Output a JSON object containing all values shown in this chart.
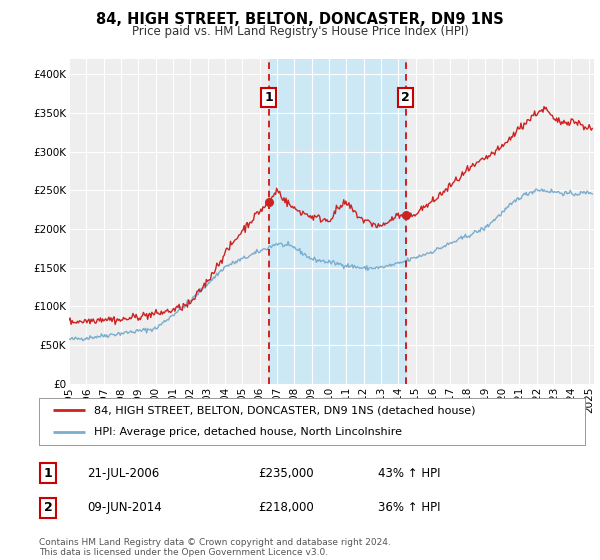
{
  "title": "84, HIGH STREET, BELTON, DONCASTER, DN9 1NS",
  "subtitle": "Price paid vs. HM Land Registry's House Price Index (HPI)",
  "footnote1": "Contains HM Land Registry data © Crown copyright and database right 2024.",
  "footnote2": "This data is licensed under the Open Government Licence v3.0.",
  "legend_line1": "84, HIGH STREET, BELTON, DONCASTER, DN9 1NS (detached house)",
  "legend_line2": "HPI: Average price, detached house, North Lincolnshire",
  "annotation1_date": "21-JUL-2006",
  "annotation1_price": "£235,000",
  "annotation1_hpi": "43% ↑ HPI",
  "annotation2_date": "09-JUN-2014",
  "annotation2_price": "£218,000",
  "annotation2_hpi": "36% ↑ HPI",
  "sale1_x": 2006.54,
  "sale1_y": 235000,
  "sale2_x": 2014.44,
  "sale2_y": 218000,
  "vline1_x": 2006.54,
  "vline2_x": 2014.44,
  "shade_start": 2006.54,
  "shade_end": 2014.44,
  "ylim_min": 0,
  "ylim_max": 420000,
  "xlim_min": 1995,
  "xlim_max": 2025.3,
  "background_color": "#ffffff",
  "plot_bg_color": "#eeeeee",
  "shade_color": "#cde8f5",
  "hpi_line_color": "#7aadce",
  "price_line_color": "#cc2222",
  "vline_color": "#cc0000",
  "grid_color": "#ffffff",
  "sale_dot_color": "#cc2222",
  "yticks": [
    0,
    50000,
    100000,
    150000,
    200000,
    250000,
    300000,
    350000,
    400000
  ],
  "ytick_labels": [
    "£0",
    "£50K",
    "£100K",
    "£150K",
    "£200K",
    "£250K",
    "£300K",
    "£350K",
    "£400K"
  ],
  "xticks": [
    1995,
    1996,
    1997,
    1998,
    1999,
    2000,
    2001,
    2002,
    2003,
    2004,
    2005,
    2006,
    2007,
    2008,
    2009,
    2010,
    2011,
    2012,
    2013,
    2014,
    2015,
    2016,
    2017,
    2018,
    2019,
    2020,
    2021,
    2022,
    2023,
    2024,
    2025
  ],
  "title_fontsize": 10.5,
  "subtitle_fontsize": 8.5,
  "tick_fontsize": 7.5,
  "legend_fontsize": 8.0,
  "annotation_fontsize": 8.5,
  "footnote_fontsize": 6.5
}
